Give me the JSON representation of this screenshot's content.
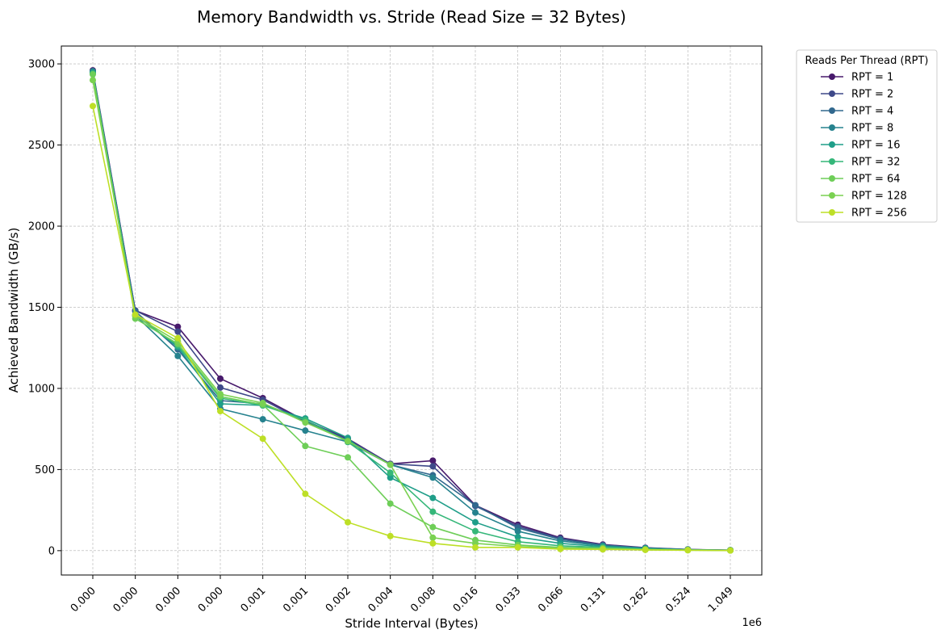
{
  "chart_data": {
    "type": "line",
    "title": "Memory Bandwidth vs. Stride (Read Size = 32 Bytes)",
    "xlabel": "Stride Interval (Bytes)",
    "ylabel": "Achieved Bandwidth (GB/s)",
    "x_offset_label": "1e6",
    "x_tick_labels": [
      "0.000",
      "0.000",
      "0.000",
      "0.000",
      "0.001",
      "0.001",
      "0.002",
      "0.004",
      "0.008",
      "0.016",
      "0.033",
      "0.066",
      "0.131",
      "0.262",
      "0.524",
      "1.049"
    ],
    "y_ticks": [
      0,
      500,
      1000,
      1500,
      2000,
      2500,
      3000
    ],
    "ylim": [
      -150,
      3110
    ],
    "grid": true,
    "legend_title": "Reads Per Thread (RPT)",
    "legend_position": "outside-right",
    "series": [
      {
        "name": "RPT = 1",
        "color": "#481a6c",
        "values": [
          2960,
          1480,
          1380,
          1060,
          940,
          800,
          690,
          535,
          555,
          280,
          160,
          80,
          38,
          18,
          8,
          3
        ]
      },
      {
        "name": "RPT = 2",
        "color": "#3e4989",
        "values": [
          2950,
          1480,
          1350,
          1005,
          930,
          795,
          685,
          535,
          520,
          275,
          150,
          75,
          35,
          17,
          7,
          3
        ]
      },
      {
        "name": "RPT = 4",
        "color": "#31688e",
        "values": [
          2945,
          1475,
          1240,
          925,
          905,
          805,
          680,
          530,
          465,
          280,
          140,
          70,
          33,
          16,
          7,
          3
        ]
      },
      {
        "name": "RPT = 8",
        "color": "#26828e",
        "values": [
          2955,
          1450,
          1200,
          875,
          810,
          740,
          670,
          530,
          450,
          235,
          120,
          60,
          30,
          15,
          6,
          3
        ]
      },
      {
        "name": "RPT = 16",
        "color": "#1f9e89",
        "values": [
          2945,
          1455,
          1255,
          905,
          895,
          815,
          695,
          450,
          325,
          175,
          85,
          45,
          25,
          13,
          6,
          3
        ]
      },
      {
        "name": "RPT = 32",
        "color": "#35b779",
        "values": [
          2940,
          1450,
          1265,
          940,
          895,
          805,
          670,
          480,
          240,
          120,
          55,
          30,
          20,
          10,
          5,
          2
        ]
      },
      {
        "name": "RPT = 64",
        "color": "#6ece58",
        "values": [
          2935,
          1430,
          1275,
          950,
          900,
          645,
          575,
          290,
          145,
          65,
          35,
          20,
          15,
          8,
          4,
          2
        ]
      },
      {
        "name": "RPT = 128",
        "color": "#7ad151",
        "values": [
          2900,
          1445,
          1290,
          965,
          910,
          790,
          675,
          530,
          80,
          45,
          25,
          15,
          10,
          5,
          3,
          1
        ]
      },
      {
        "name": "RPT = 256",
        "color": "#bddf26",
        "values": [
          2740,
          1455,
          1310,
          860,
          690,
          350,
          175,
          90,
          45,
          20,
          20,
          10,
          8,
          5,
          3,
          1
        ]
      }
    ]
  }
}
